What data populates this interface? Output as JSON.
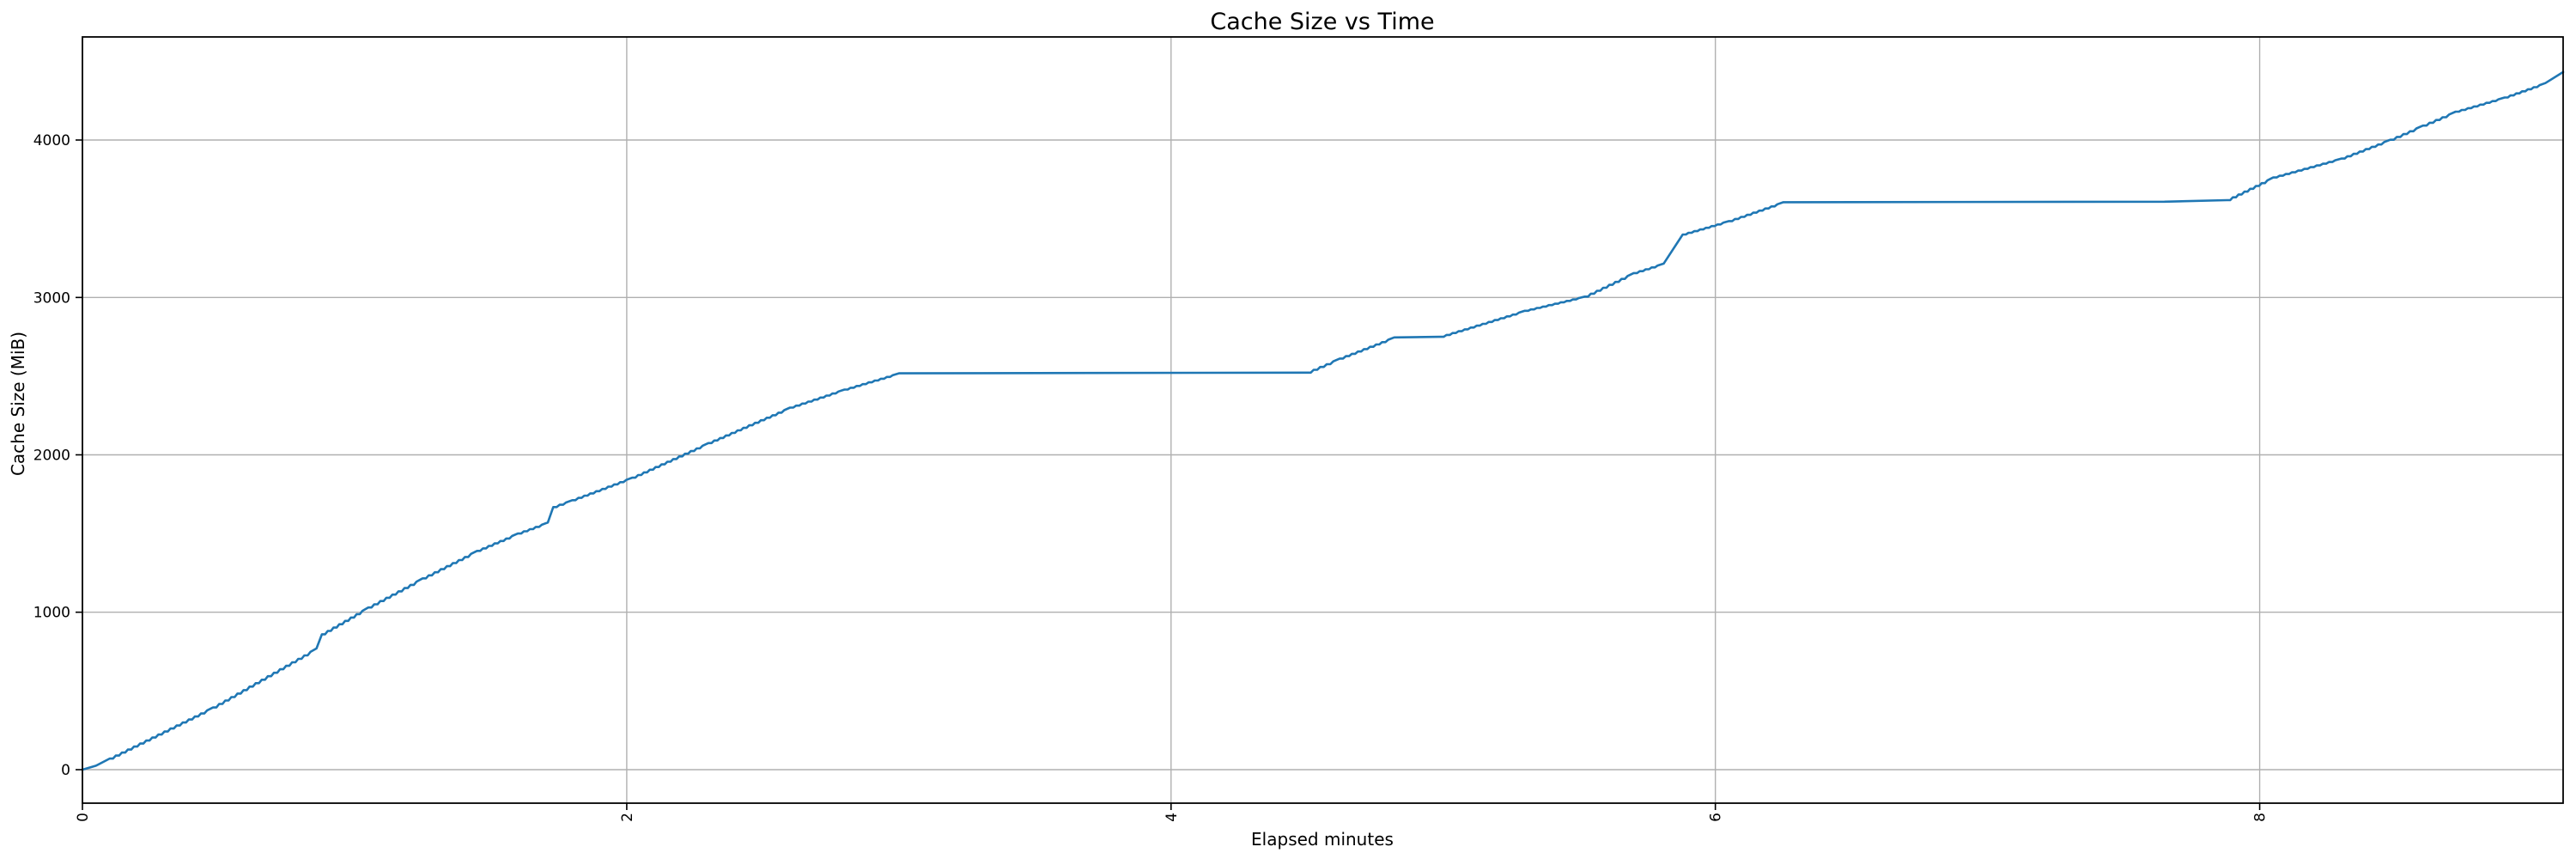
{
  "chart_data": {
    "type": "line",
    "title": "Cache Size vs Time",
    "xlabel": "Elapsed minutes",
    "ylabel": "Cache Size (MiB)",
    "x_ticks": [
      0,
      2,
      4,
      6,
      8
    ],
    "y_ticks": [
      0,
      1000,
      2000,
      3000,
      4000
    ],
    "xlim": [
      0,
      9.115
    ],
    "ylim": [
      -213,
      4655
    ],
    "grid": true,
    "legend": false,
    "x_tick_rotation_deg": 90,
    "line_color": "#1f77b4",
    "grid_color": "#b0b0b0",
    "spine_color": "#000000",
    "points": [
      [
        0,
        0
      ],
      [
        0.05,
        25
      ],
      [
        0.1,
        70
      ],
      [
        0.48,
        395
      ],
      [
        0.86,
        770
      ],
      [
        0.88,
        860
      ],
      [
        1.05,
        1030
      ],
      [
        1.25,
        1215
      ],
      [
        1.45,
        1390
      ],
      [
        1.6,
        1500
      ],
      [
        1.71,
        1570
      ],
      [
        1.73,
        1668
      ],
      [
        1.8,
        1712
      ],
      [
        2.02,
        1855
      ],
      [
        2.3,
        2075
      ],
      [
        2.6,
        2300
      ],
      [
        2.8,
        2415
      ],
      [
        3.0,
        2518
      ],
      [
        4.5,
        2522
      ],
      [
        4.62,
        2612
      ],
      [
        4.82,
        2746
      ],
      [
        4.99,
        2750
      ],
      [
        5.3,
        2915
      ],
      [
        5.52,
        3005
      ],
      [
        5.7,
        3155
      ],
      [
        5.81,
        3215
      ],
      [
        5.88,
        3400
      ],
      [
        6.05,
        3485
      ],
      [
        6.25,
        3605
      ],
      [
        7.65,
        3608
      ],
      [
        7.88,
        3618
      ],
      [
        8.05,
        3762
      ],
      [
        8.3,
        3882
      ],
      [
        8.48,
        4002
      ],
      [
        8.6,
        4092
      ],
      [
        8.72,
        4180
      ],
      [
        8.9,
        4270
      ],
      [
        9.05,
        4362
      ],
      [
        9.115,
        4432
      ]
    ]
  }
}
